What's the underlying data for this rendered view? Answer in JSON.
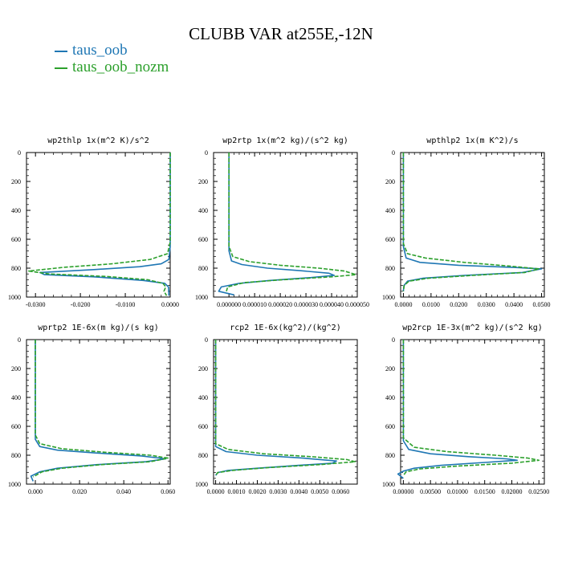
{
  "figure": {
    "title": "CLUBB VAR at255E,-12N",
    "legend": [
      {
        "label": "taus_oob",
        "color": "#1f77b4"
      },
      {
        "label": "taus_oob_nozm",
        "color": "#2ca02c"
      }
    ]
  },
  "chart_data": [
    {
      "type": "line",
      "title": "wp2thlp  1x(m^2 K)/s^2",
      "xlim": [
        -0.032,
        0.0
      ],
      "xticks": [
        -0.03,
        -0.02,
        -0.01,
        0.0
      ],
      "xtick_labels": [
        "-0.0300",
        "-0.0200",
        "-0.0100",
        "0.0000"
      ],
      "ylim": [
        1000,
        0
      ],
      "yticks": [
        0,
        200,
        400,
        600,
        800,
        1000
      ],
      "series": [
        {
          "name": "taus_oob",
          "style": "solid",
          "color": "#1f77b4",
          "x": [
            0.0,
            0.0,
            -0.0003,
            -0.002,
            -0.0068,
            -0.017,
            -0.029,
            -0.028,
            -0.017,
            -0.006,
            -0.0012,
            -0.0004,
            -0.0003,
            -0.0003
          ],
          "y": [
            0,
            650,
            740,
            770,
            790,
            810,
            830,
            845,
            860,
            885,
            905,
            930,
            960,
            990
          ]
        },
        {
          "name": "taus_oob_nozm",
          "style": "dashed",
          "color": "#2ca02c",
          "x": [
            0.0,
            0.0,
            -0.0006,
            -0.0045,
            -0.013,
            -0.024,
            -0.0315,
            -0.027,
            -0.014,
            -0.005,
            -0.0016,
            -0.001,
            -0.0014,
            -0.0008
          ],
          "y": [
            0,
            620,
            700,
            740,
            770,
            795,
            820,
            840,
            858,
            880,
            905,
            930,
            960,
            990
          ]
        }
      ]
    },
    {
      "type": "line",
      "title": "wp2rtp  1x(m^2 kg)/(s^2 kg)",
      "xlim": [
        -6e-06,
        5e-05
      ],
      "xticks": [
        0.0,
        1e-05,
        2e-05,
        3e-05,
        4e-05,
        5e-05
      ],
      "xtick_labels": [
        "0.000000",
        "0.000010",
        "0.000020",
        "0.000030",
        "0.000040",
        "0.000050"
      ],
      "ylim": [
        1000,
        0
      ],
      "yticks": [
        0,
        200,
        400,
        600,
        800,
        1000
      ],
      "series": [
        {
          "name": "taus_oob",
          "style": "solid",
          "color": "#1f77b4",
          "x": [
            0.0,
            0.0,
            1e-06,
            5e-06,
            1.5e-05,
            2.8e-05,
            3.9e-05,
            4.1e-05,
            3.2e-05,
            1.6e-05,
            4e-06,
            -3e-06,
            -4e-06,
            2e-06
          ],
          "y": [
            0,
            680,
            750,
            775,
            800,
            818,
            835,
            850,
            865,
            885,
            905,
            930,
            960,
            985
          ]
        },
        {
          "name": "taus_oob_nozm",
          "style": "dashed",
          "color": "#2ca02c",
          "x": [
            0.0,
            0.0,
            1.5e-06,
            8e-06,
            2e-05,
            3.5e-05,
            4.5e-05,
            4.95e-05,
            4e-05,
            2.1e-05,
            6e-06,
            -5e-07,
            -1e-06
          ],
          "y": [
            0,
            650,
            720,
            755,
            780,
            800,
            820,
            845,
            860,
            880,
            900,
            930,
            960
          ]
        }
      ]
    },
    {
      "type": "line",
      "title": "wpthlp2  1x(m K^2)/s",
      "xlim": [
        -0.001,
        0.051
      ],
      "xticks": [
        0.0,
        0.01,
        0.02,
        0.03,
        0.04,
        0.05
      ],
      "xtick_labels": [
        "0.0000",
        "0.0100",
        "0.0200",
        "0.0300",
        "0.0400",
        "0.0500"
      ],
      "ylim": [
        1000,
        0
      ],
      "yticks": [
        0,
        200,
        400,
        600,
        800,
        1000
      ],
      "series": [
        {
          "name": "taus_oob",
          "style": "solid",
          "color": "#1f77b4",
          "x": [
            0.0,
            0.0,
            0.001,
            0.006,
            0.02,
            0.04,
            0.05,
            0.043,
            0.022,
            0.007,
            0.0015,
            0.0002,
            0.0
          ],
          "y": [
            0,
            650,
            730,
            760,
            780,
            795,
            805,
            830,
            850,
            870,
            890,
            920,
            960
          ]
        },
        {
          "name": "taus_oob_nozm",
          "style": "dashed",
          "color": "#2ca02c",
          "x": [
            0.0,
            0.0,
            0.0015,
            0.008,
            0.022,
            0.038,
            0.049,
            0.044,
            0.025,
            0.009,
            0.002,
            0.0003,
            0.0
          ],
          "y": [
            0,
            630,
            700,
            730,
            760,
            785,
            805,
            830,
            850,
            870,
            890,
            920,
            960
          ]
        }
      ]
    },
    {
      "type": "line",
      "title": "wprtp2  1E-6x(m kg)/(s kg)",
      "xlim": [
        -0.004,
        0.061
      ],
      "xticks": [
        0.0,
        0.02,
        0.04,
        0.06
      ],
      "xtick_labels": [
        "0.000",
        "0.020",
        "0.040",
        "0.060"
      ],
      "ylim": [
        1000,
        0
      ],
      "yticks": [
        0,
        200,
        400,
        600,
        800,
        1000
      ],
      "series": [
        {
          "name": "taus_oob",
          "style": "solid",
          "color": "#1f77b4",
          "x": [
            0.0,
            0.0,
            0.002,
            0.01,
            0.028,
            0.048,
            0.059,
            0.05,
            0.028,
            0.01,
            0.002,
            -0.002,
            -0.001
          ],
          "y": [
            0,
            690,
            740,
            765,
            785,
            805,
            825,
            845,
            865,
            890,
            915,
            945,
            980
          ]
        },
        {
          "name": "taus_oob_nozm",
          "style": "dashed",
          "color": "#2ca02c",
          "x": [
            0.0,
            0.0,
            0.002,
            0.012,
            0.032,
            0.052,
            0.06,
            0.052,
            0.03,
            0.012,
            0.003,
            -0.001
          ],
          "y": [
            0,
            660,
            720,
            755,
            780,
            800,
            820,
            845,
            865,
            890,
            915,
            950
          ]
        }
      ]
    },
    {
      "type": "line",
      "title": "rcp2  1E-6x(kg^2)/(kg^2)",
      "xlim": [
        -0.0001,
        0.0068
      ],
      "xticks": [
        0.0,
        0.001,
        0.002,
        0.003,
        0.004,
        0.005,
        0.006
      ],
      "xtick_labels": [
        "0.0000",
        "0.0010",
        "0.0020",
        "0.0030",
        "0.0040",
        "0.0050",
        "0.0060"
      ],
      "ylim": [
        1000,
        0
      ],
      "yticks": [
        0,
        200,
        400,
        600,
        800,
        1000
      ],
      "series": [
        {
          "name": "taus_oob",
          "style": "solid",
          "color": "#1f77b4",
          "x": [
            0.0,
            0.0,
            0.0005,
            0.002,
            0.0042,
            0.0058,
            0.0056,
            0.004,
            0.002,
            0.0006,
            0.0001,
            0.0
          ],
          "y": [
            0,
            740,
            775,
            800,
            820,
            840,
            855,
            870,
            890,
            905,
            920,
            940
          ]
        },
        {
          "name": "taus_oob_nozm",
          "style": "dashed",
          "color": "#2ca02c",
          "x": [
            0.0,
            0.0,
            0.0006,
            0.0023,
            0.0046,
            0.0063,
            0.0067,
            0.005,
            0.0026,
            0.0008,
            0.0001,
            0.0
          ],
          "y": [
            0,
            720,
            760,
            790,
            810,
            830,
            845,
            865,
            885,
            905,
            920,
            940
          ]
        }
      ]
    },
    {
      "type": "line",
      "title": "wp2rcp  1E-3x(m^2 kg)/(s^2 kg)",
      "xlim": [
        -0.0005,
        0.026
      ],
      "xticks": [
        0.0,
        0.005,
        0.01,
        0.015,
        0.02,
        0.025
      ],
      "xtick_labels": [
        "0.00000",
        "0.00500",
        "0.01000",
        "0.01500",
        "0.02000",
        "0.02500"
      ],
      "ylim": [
        1000,
        0
      ],
      "yticks": [
        0,
        200,
        400,
        600,
        800,
        1000
      ],
      "series": [
        {
          "name": "taus_oob",
          "style": "solid",
          "color": "#1f77b4",
          "x": [
            0.0,
            0.0,
            0.001,
            0.005,
            0.012,
            0.019,
            0.021,
            0.015,
            0.007,
            0.002,
            0.0,
            -0.001,
            0.0
          ],
          "y": [
            0,
            700,
            760,
            790,
            810,
            825,
            835,
            850,
            870,
            890,
            910,
            930,
            960
          ]
        },
        {
          "name": "taus_oob_nozm",
          "style": "dashed",
          "color": "#2ca02c",
          "x": [
            0.0,
            0.0,
            0.002,
            0.008,
            0.017,
            0.023,
            0.025,
            0.02,
            0.01,
            0.003,
            0.0005,
            0.0
          ],
          "y": [
            0,
            680,
            745,
            775,
            800,
            820,
            835,
            855,
            875,
            895,
            915,
            940
          ]
        }
      ]
    }
  ]
}
